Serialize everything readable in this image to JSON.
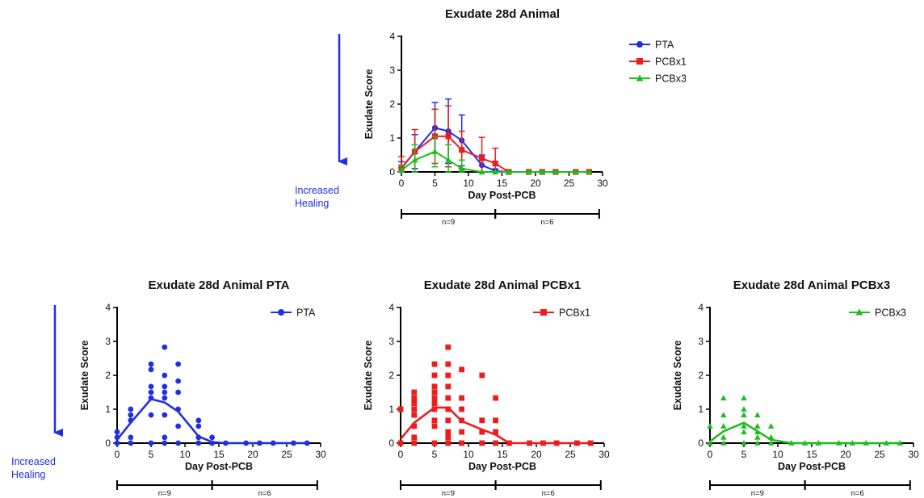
{
  "colors": {
    "PTA": "#1f2ee6",
    "PCBx1": "#ee1c1c",
    "PCBx3": "#1ebd1e",
    "arrow": "#1f2ee6",
    "axis": "#000000"
  },
  "annotation": {
    "line1": "Increased",
    "line2": "Healing"
  },
  "chart_data": [
    {
      "type": "line",
      "title": "Exudate 28d Animal",
      "xlabel": "Day Post-PCB",
      "ylabel": "Exudate Score",
      "xlim": [
        0,
        30
      ],
      "ylim": [
        0,
        4
      ],
      "xticks": [
        0,
        5,
        10,
        15,
        20,
        25,
        30
      ],
      "yticks": [
        0,
        1,
        2,
        3,
        4
      ],
      "legend": "top-right",
      "groups": [
        {
          "label": "n=9",
          "range": [
            0,
            14
          ]
        },
        {
          "label": "n=6",
          "range": [
            14,
            29.5
          ]
        }
      ],
      "series": [
        {
          "name": "PTA",
          "marker": "circle",
          "x": [
            0,
            2,
            5,
            7,
            9,
            12,
            14,
            16,
            19,
            21,
            23,
            26,
            28
          ],
          "y": [
            0.1,
            0.6,
            1.3,
            1.2,
            0.93,
            0.2,
            0.03,
            0,
            0,
            0,
            0,
            0,
            0
          ],
          "err": [
            0.2,
            0.5,
            0.75,
            0.95,
            0.75,
            0.3,
            0.06,
            0,
            0,
            0,
            0,
            0,
            0
          ]
        },
        {
          "name": "PCBx1",
          "marker": "square",
          "x": [
            0,
            2,
            5,
            7,
            9,
            12,
            14,
            16,
            19,
            21,
            23,
            26,
            28
          ],
          "y": [
            0.12,
            0.6,
            1.05,
            1.05,
            0.65,
            0.4,
            0.25,
            0,
            0,
            0,
            0,
            0,
            0
          ],
          "err": [
            0.33,
            0.65,
            0.8,
            0.9,
            0.55,
            0.62,
            0.45,
            0,
            0,
            0,
            0,
            0,
            0
          ]
        },
        {
          "name": "PCBx3",
          "marker": "triangle",
          "x": [
            0,
            2,
            5,
            7,
            9,
            12,
            14,
            16,
            19,
            21,
            23,
            26,
            28
          ],
          "y": [
            0.05,
            0.35,
            0.6,
            0.35,
            0.1,
            0,
            0,
            0,
            0,
            0,
            0,
            0,
            0
          ],
          "err": [
            0.15,
            0.45,
            0.45,
            0.45,
            0.25,
            0,
            0,
            0,
            0,
            0,
            0,
            0,
            0
          ]
        }
      ]
    },
    {
      "type": "scatter",
      "title": "Exudate 28d Animal PTA",
      "xlabel": "Day Post-PCB",
      "ylabel": "Exudate Score",
      "xlim": [
        0,
        30
      ],
      "ylim": [
        0,
        4
      ],
      "xticks": [
        0,
        5,
        10,
        15,
        20,
        25,
        30
      ],
      "yticks": [
        0,
        1,
        2,
        3,
        4
      ],
      "legend": "top-right",
      "groups": [
        {
          "label": "n=9",
          "range": [
            0,
            14
          ]
        },
        {
          "label": "n=6",
          "range": [
            14,
            29.5
          ]
        }
      ],
      "series": [
        {
          "name": "PTA",
          "marker": "circle",
          "points": [
            [
              0,
              0
            ],
            [
              0,
              0.17
            ],
            [
              0,
              0.33
            ],
            [
              2,
              0
            ],
            [
              2,
              0.17
            ],
            [
              2,
              0.67
            ],
            [
              2,
              0.83
            ],
            [
              2,
              1.0
            ],
            [
              5,
              0
            ],
            [
              5,
              0.83
            ],
            [
              5,
              1.33
            ],
            [
              5,
              1.5
            ],
            [
              5,
              1.67
            ],
            [
              5,
              2.17
            ],
            [
              5,
              2.33
            ],
            [
              7,
              0
            ],
            [
              7,
              0.17
            ],
            [
              7,
              0.83
            ],
            [
              7,
              1.33
            ],
            [
              7,
              1.5
            ],
            [
              7,
              1.67
            ],
            [
              7,
              2.0
            ],
            [
              7,
              2.83
            ],
            [
              9,
              0
            ],
            [
              9,
              0.5
            ],
            [
              9,
              1.0
            ],
            [
              9,
              1.5
            ],
            [
              9,
              1.83
            ],
            [
              9,
              2.33
            ],
            [
              12,
              0
            ],
            [
              12,
              0.17
            ],
            [
              12,
              0.5
            ],
            [
              12,
              0.67
            ],
            [
              14,
              0
            ],
            [
              14,
              0.17
            ],
            [
              16,
              0
            ],
            [
              19,
              0
            ],
            [
              21,
              0
            ],
            [
              23,
              0
            ],
            [
              26,
              0
            ],
            [
              28,
              0
            ]
          ],
          "trend_x": [
            0,
            2,
            5,
            7,
            9,
            12,
            14,
            16,
            19,
            21,
            23,
            26,
            28
          ],
          "trend_y": [
            0.1,
            0.6,
            1.3,
            1.2,
            0.93,
            0.2,
            0.03,
            0,
            0,
            0,
            0,
            0,
            0
          ]
        }
      ]
    },
    {
      "type": "scatter",
      "title": "Exudate 28d Animal PCBx1",
      "xlabel": "Day Post-PCB",
      "ylabel": "Exudate Score",
      "xlim": [
        0,
        30
      ],
      "ylim": [
        0,
        4
      ],
      "xticks": [
        0,
        5,
        10,
        15,
        20,
        25,
        30
      ],
      "yticks": [
        0,
        1,
        2,
        3,
        4
      ],
      "legend": "top-right",
      "groups": [
        {
          "label": "n=9",
          "range": [
            0,
            14
          ]
        },
        {
          "label": "n=6",
          "range": [
            14,
            29.5
          ]
        }
      ],
      "series": [
        {
          "name": "PCBx1",
          "marker": "square",
          "points": [
            [
              0,
              0
            ],
            [
              0,
              1.0
            ],
            [
              2,
              0
            ],
            [
              2,
              0.17
            ],
            [
              2,
              0.5
            ],
            [
              2,
              0.83
            ],
            [
              2,
              1.0
            ],
            [
              2,
              1.17
            ],
            [
              2,
              1.33
            ],
            [
              2,
              1.5
            ],
            [
              5,
              0
            ],
            [
              5,
              0.5
            ],
            [
              5,
              0.67
            ],
            [
              5,
              1.0
            ],
            [
              5,
              1.17
            ],
            [
              5,
              1.33
            ],
            [
              5,
              1.5
            ],
            [
              5,
              1.67
            ],
            [
              5,
              2.0
            ],
            [
              5,
              2.33
            ],
            [
              7,
              0
            ],
            [
              7,
              0.17
            ],
            [
              7,
              0.33
            ],
            [
              7,
              0.67
            ],
            [
              7,
              1.0
            ],
            [
              7,
              1.33
            ],
            [
              7,
              1.67
            ],
            [
              7,
              2.0
            ],
            [
              7,
              2.33
            ],
            [
              7,
              2.83
            ],
            [
              9,
              0
            ],
            [
              9,
              0.33
            ],
            [
              9,
              0.67
            ],
            [
              9,
              1.0
            ],
            [
              9,
              1.33
            ],
            [
              9,
              2.17
            ],
            [
              12,
              0
            ],
            [
              12,
              0.33
            ],
            [
              12,
              0.67
            ],
            [
              12,
              2.0
            ],
            [
              14,
              0
            ],
            [
              14,
              0.33
            ],
            [
              14,
              0.67
            ],
            [
              14,
              1.33
            ],
            [
              16,
              0
            ],
            [
              19,
              0
            ],
            [
              21,
              0
            ],
            [
              23,
              0
            ],
            [
              26,
              0
            ],
            [
              28,
              0
            ]
          ],
          "trend_x": [
            0,
            2,
            5,
            7,
            9,
            12,
            14,
            16,
            19,
            21,
            23,
            26,
            28
          ],
          "trend_y": [
            0.12,
            0.6,
            1.05,
            1.05,
            0.65,
            0.4,
            0.25,
            0,
            0,
            0,
            0,
            0,
            0
          ]
        }
      ]
    },
    {
      "type": "scatter",
      "title": "Exudate 28d Animal PCBx3",
      "xlabel": "Day Post-PCB",
      "ylabel": "Exudate Score",
      "xlim": [
        0,
        30
      ],
      "ylim": [
        0,
        4
      ],
      "xticks": [
        0,
        5,
        10,
        15,
        20,
        25,
        30
      ],
      "yticks": [
        0,
        1,
        2,
        3,
        4
      ],
      "legend": "top-right",
      "groups": [
        {
          "label": "n=9",
          "range": [
            0,
            14
          ]
        },
        {
          "label": "n=6",
          "range": [
            14,
            29.5
          ]
        }
      ],
      "series": [
        {
          "name": "PCBx3",
          "marker": "triangle",
          "points": [
            [
              0,
              0
            ],
            [
              0,
              0.5
            ],
            [
              2,
              0
            ],
            [
              2,
              0.17
            ],
            [
              2,
              0.5
            ],
            [
              2,
              0.83
            ],
            [
              2,
              1.33
            ],
            [
              5,
              0
            ],
            [
              5,
              0.33
            ],
            [
              5,
              0.5
            ],
            [
              5,
              0.83
            ],
            [
              5,
              1.0
            ],
            [
              5,
              1.33
            ],
            [
              7,
              0
            ],
            [
              7,
              0.17
            ],
            [
              7,
              0.33
            ],
            [
              7,
              0.5
            ],
            [
              7,
              0.83
            ],
            [
              9,
              0
            ],
            [
              9,
              0.17
            ],
            [
              9,
              0.5
            ],
            [
              12,
              0
            ],
            [
              14,
              0
            ],
            [
              16,
              0
            ],
            [
              19,
              0
            ],
            [
              21,
              0
            ],
            [
              23,
              0
            ],
            [
              26,
              0
            ],
            [
              28,
              0
            ]
          ],
          "trend_x": [
            0,
            2,
            5,
            7,
            9,
            12,
            14,
            16,
            19,
            21,
            23,
            26,
            28
          ],
          "trend_y": [
            0.05,
            0.35,
            0.6,
            0.35,
            0.1,
            0,
            0,
            0,
            0,
            0,
            0,
            0,
            0
          ]
        }
      ]
    }
  ]
}
